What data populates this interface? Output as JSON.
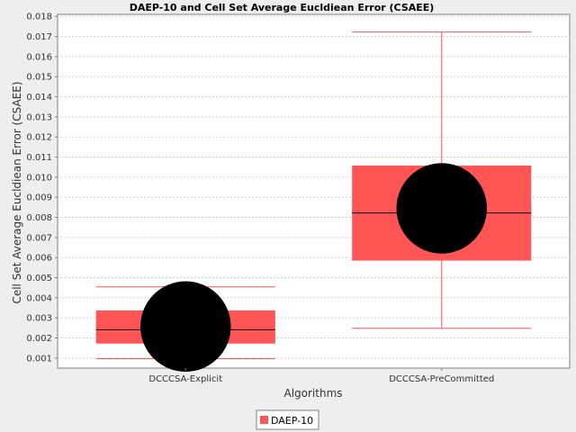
{
  "chart_data": {
    "type": "box",
    "title": "DAEP-10 and Cell Set Average Eucldiean Error (CSAEE)",
    "xlabel": "Algorithms",
    "ylabel": "Cell Set Average Eucldiean Error (CSAEE)",
    "ylim": [
      0.0005,
      0.0181
    ],
    "yticks": [
      "0.001",
      "0.002",
      "0.003",
      "0.004",
      "0.005",
      "0.006",
      "0.007",
      "0.008",
      "0.009",
      "0.010",
      "0.011",
      "0.012",
      "0.013",
      "0.014",
      "0.015",
      "0.016",
      "0.017",
      "0.018"
    ],
    "grid": true,
    "legend_position": "bottom-center",
    "categories": [
      "DCCCSA-Explicit",
      "DCCCSA-PreCommitted"
    ],
    "series": [
      {
        "name": "DAEP-10",
        "color": "#ff5555",
        "boxes": [
          {
            "category": "DCCCSA-Explicit",
            "min": 0.00097,
            "q1": 0.00172,
            "median": 0.00241,
            "q3": 0.00337,
            "max": 0.00454,
            "mean": 0.00257,
            "mean_marker_color": "#000000"
          },
          {
            "category": "DCCCSA-PreCommitted",
            "min": 0.00248,
            "q1": 0.00585,
            "median": 0.00822,
            "q3": 0.01058,
            "max": 0.01722,
            "mean": 0.00845,
            "mean_marker_color": "#000000"
          }
        ]
      }
    ]
  }
}
